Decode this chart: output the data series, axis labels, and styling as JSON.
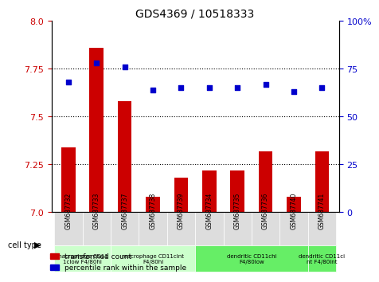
{
  "title": "GDS4369 / 10518333",
  "samples": [
    "GSM687732",
    "GSM687733",
    "GSM687737",
    "GSM687738",
    "GSM687739",
    "GSM687734",
    "GSM687735",
    "GSM687736",
    "GSM687740",
    "GSM687741"
  ],
  "transformed_count": [
    7.34,
    7.86,
    7.58,
    7.08,
    7.18,
    7.22,
    7.22,
    7.32,
    7.08,
    7.32
  ],
  "percentile_rank": [
    68,
    78,
    76,
    64,
    65,
    65,
    65,
    67,
    63,
    65
  ],
  "ylim_left": [
    7.0,
    8.0
  ],
  "ylim_right": [
    0,
    100
  ],
  "yticks_left": [
    7.0,
    7.25,
    7.5,
    7.75,
    8.0
  ],
  "yticks_right": [
    0,
    25,
    50,
    75,
    100
  ],
  "hlines": [
    7.25,
    7.5,
    7.75
  ],
  "bar_color": "#cc0000",
  "scatter_color": "#0000cc",
  "cell_type_groups": [
    {
      "label": "macrophage CD11\n1clow F4/80hi",
      "start": 0,
      "end": 2,
      "bg": "#ccffcc"
    },
    {
      "label": "macrophage CD11cint\nF4/80hi",
      "start": 2,
      "end": 5,
      "bg": "#ccffcc"
    },
    {
      "label": "dendritic CD11chi\nF4/80low",
      "start": 5,
      "end": 9,
      "bg": "#66ee66"
    },
    {
      "label": "dendritic CD11ci\nnt F4/80int",
      "start": 9,
      "end": 10,
      "bg": "#66ee66"
    }
  ],
  "legend_bar_label": "transformed count",
  "legend_scatter_label": "percentile rank within the sample",
  "cell_type_label": "cell type"
}
